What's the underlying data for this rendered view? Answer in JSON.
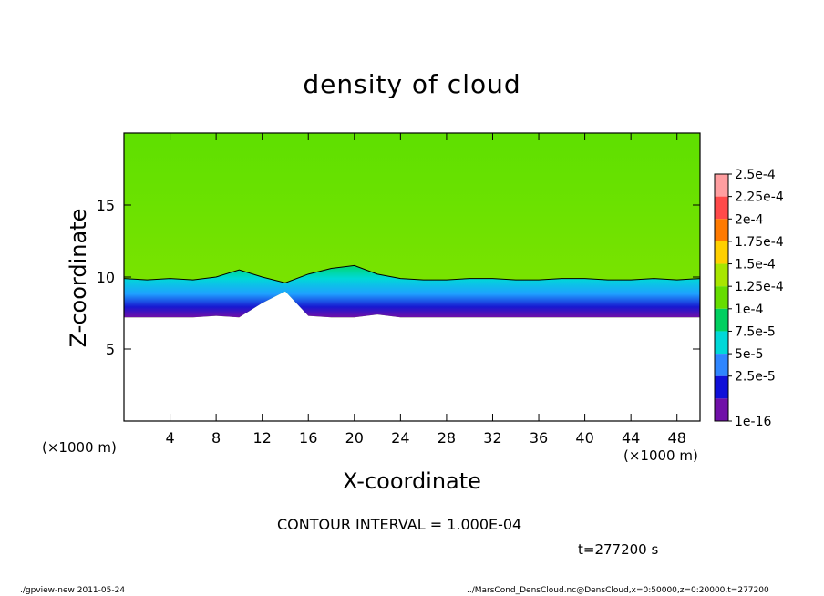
{
  "chart_data": {
    "type": "heatmap",
    "title": "density of cloud",
    "xlabel": "X-coordinate",
    "ylabel": "Z-coordinate",
    "x_unit": "(×1000 m)",
    "x_ticks": [
      4,
      8,
      12,
      16,
      20,
      24,
      28,
      32,
      36,
      40,
      44,
      48
    ],
    "y_ticks": [
      5,
      10,
      15
    ],
    "xlim": [
      0,
      50
    ],
    "ylim": [
      0,
      20
    ],
    "legend_levels": [
      "2.5e-4",
      "2.25e-4",
      "2e-4",
      "1.75e-4",
      "1.5e-4",
      "1.25e-4",
      "1e-4",
      "7.5e-5",
      "5e-5",
      "2.5e-5",
      "1e-16"
    ],
    "legend_colors": [
      "#ff9ea0",
      "#ff4a4a",
      "#ff7a00",
      "#ffd000",
      "#a8e600",
      "#66dd00",
      "#00d060",
      "#00d8d8",
      "#2f86ff",
      "#1010d8",
      "#7010a8"
    ],
    "contour_levels": [
      0.0001
    ],
    "cloud_base_z": {
      "x": [
        0,
        2,
        4,
        6,
        8,
        10,
        12,
        14,
        16,
        18,
        20,
        22,
        24,
        26,
        28,
        30,
        32,
        34,
        36,
        38,
        40,
        42,
        44,
        46,
        48,
        50
      ],
      "z": [
        7.2,
        7.2,
        7.2,
        7.2,
        7.3,
        7.2,
        8.2,
        9.0,
        7.3,
        7.2,
        7.2,
        7.4,
        7.2,
        7.2,
        7.2,
        7.2,
        7.2,
        7.2,
        7.2,
        7.2,
        7.2,
        7.2,
        7.2,
        7.2,
        7.2,
        7.2
      ]
    },
    "contour_1e-4_z": {
      "x": [
        0,
        2,
        4,
        6,
        8,
        10,
        12,
        14,
        16,
        18,
        20,
        22,
        24,
        26,
        28,
        30,
        32,
        34,
        36,
        38,
        40,
        42,
        44,
        46,
        48,
        50
      ],
      "z": [
        9.9,
        9.8,
        9.9,
        9.8,
        10.0,
        10.5,
        10.0,
        9.6,
        10.2,
        10.6,
        10.8,
        10.2,
        9.9,
        9.8,
        9.8,
        9.9,
        9.9,
        9.8,
        9.8,
        9.9,
        9.9,
        9.8,
        9.8,
        9.9,
        9.8,
        9.9
      ]
    }
  },
  "contour_interval": "CONTOUR INTERVAL = 1.000E-04",
  "time_label": "t=277200 s",
  "footer_left": "./gpview-new   2011-05-24",
  "footer_right": "../MarsCond_DensCloud.nc@DensCloud,x=0:50000,z=0:20000,t=277200"
}
